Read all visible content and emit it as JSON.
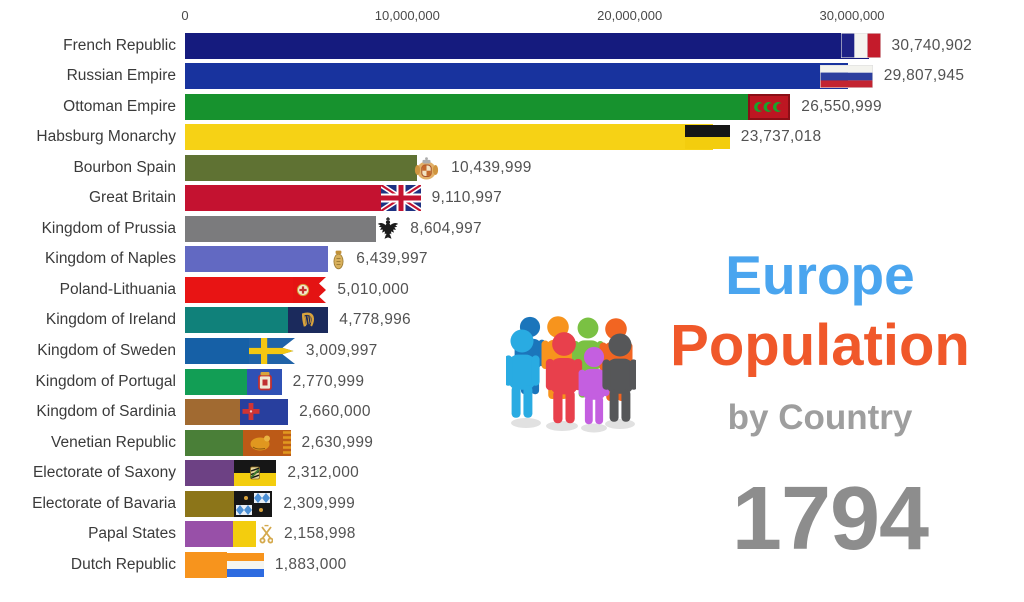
{
  "frame": {
    "kind": "bar-chart-race-video-frame"
  },
  "axis": {
    "tick_labels": [
      "0",
      "10,000,000",
      "20,000,000",
      "30,000,000"
    ],
    "tick_values": [
      0,
      10000000,
      20000000,
      30000000
    ]
  },
  "chart_data": {
    "type": "bar",
    "orientation": "horizontal",
    "title": "Europe Population by Country",
    "year": "1794",
    "xlim": [
      0,
      32000000
    ],
    "x_ticks": [
      0,
      10000000,
      20000000,
      30000000
    ],
    "x_tick_labels": [
      "0",
      "10,000,000",
      "20,000,000",
      "30,000,000"
    ],
    "grid": false,
    "legend": false,
    "bars": [
      {
        "label": "French Republic",
        "value": 30740902,
        "value_label": "30,740,902",
        "color": "#151b7e",
        "flag": "french-tricolor-flag"
      },
      {
        "label": "Russian Empire",
        "value": 29807945,
        "value_label": "29,807,945",
        "color": "#18339e",
        "flag": "russian-tricolor-flag"
      },
      {
        "label": "Ottoman Empire",
        "value": 26550999,
        "value_label": "26,550,999",
        "color": "#17922e",
        "flag": "ottoman-crescents-flag"
      },
      {
        "label": "Habsburg Monarchy",
        "value": 23737018,
        "value_label": "23,737,018",
        "color": "#f6d215",
        "flag": "habsburg-black-yellow-flag"
      },
      {
        "label": "Bourbon Spain",
        "value": 10439999,
        "value_label": "10,439,999",
        "color": "#5f7233",
        "flag": "bourbon-spain-arms"
      },
      {
        "label": "Great Britain",
        "value": 9110997,
        "value_label": "9,110,997",
        "color": "#c41230",
        "flag": "union-jack-flag"
      },
      {
        "label": "Kingdom of Prussia",
        "value": 8604997,
        "value_label": "8,604,997",
        "color": "#7b7b7d",
        "flag": "prussian-eagle"
      },
      {
        "label": "Kingdom of Naples",
        "value": 6439997,
        "value_label": "6,439,997",
        "color": "#6269c2",
        "flag": "naples-arms"
      },
      {
        "label": "Poland-Lithuania",
        "value": 5010000,
        "value_label": "5,010,000",
        "color": "#e81414",
        "flag": "poland-lithuania-banner"
      },
      {
        "label": "Kingdom of Ireland",
        "value": 4778996,
        "value_label": "4,778,996",
        "color": "#10817a",
        "flag": "ireland-harp-flag"
      },
      {
        "label": "Kingdom of Sweden",
        "value": 3009997,
        "value_label": "3,009,997",
        "color": "#1660a6",
        "flag": "sweden-swallowtail-flag"
      },
      {
        "label": "Kingdom of Portugal",
        "value": 2770999,
        "value_label": "2,770,999",
        "color": "#129e55",
        "flag": "portugal-arms-flag"
      },
      {
        "label": "Kingdom of Sardinia",
        "value": 2660000,
        "value_label": "2,660,000",
        "color": "#a16a31",
        "flag": "sardinia-savoy-flag"
      },
      {
        "label": "Venetian Republic",
        "value": 2630999,
        "value_label": "2,630,999",
        "color": "#4a7f38",
        "flag": "venice-lion-banner"
      },
      {
        "label": "Electorate of Saxony",
        "value": 2312000,
        "value_label": "2,312,000",
        "color": "#6d4184",
        "flag": "saxony-arms-flag"
      },
      {
        "label": "Electorate of Bavaria",
        "value": 2309999,
        "value_label": "2,309,999",
        "color": "#8c7519",
        "flag": "bavaria-lozenges-flag"
      },
      {
        "label": "Papal States",
        "value": 2158998,
        "value_label": "2,158,998",
        "color": "#9850a8",
        "flag": "papal-keys-flag"
      },
      {
        "label": "Dutch Republic",
        "value": 1883000,
        "value_label": "1,883,000",
        "color": "#f7941d",
        "flag": "dutch-prinsenvlag"
      }
    ]
  },
  "title_block": {
    "line1": "Europe",
    "line1_color": "#4aa5ef",
    "line2": "Population",
    "line2_color": "#f0582a",
    "line3": "by Country",
    "line3_color": "#9e9e9e"
  },
  "year_label": {
    "text": "1794",
    "color": "#8d8d8d"
  },
  "people_icon": {
    "name": "people-group-icon",
    "colors": [
      "#1b75bb",
      "#f7941d",
      "#7ac143",
      "#f26522",
      "#29abe2",
      "#e8404c",
      "#c45fe0",
      "#565759"
    ]
  }
}
